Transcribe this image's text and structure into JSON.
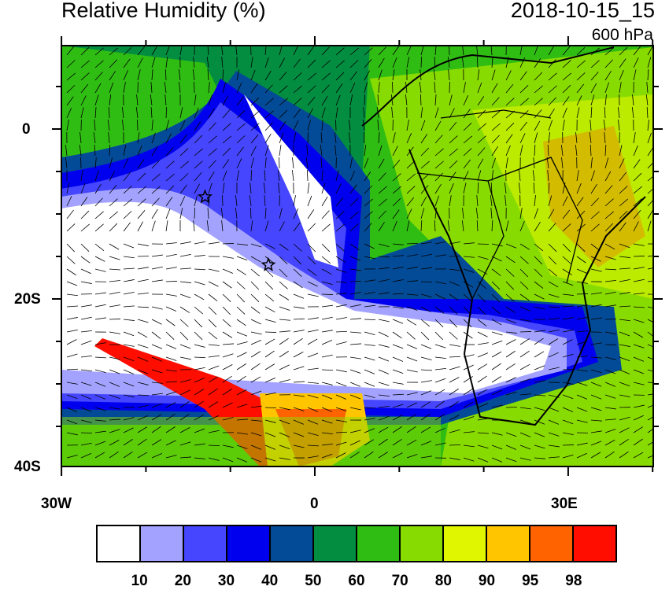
{
  "title": "Relative Humidity (%)",
  "valid_time": "2018-10-15_15",
  "level": "600 hPa",
  "axes": {
    "lon_ticks": [
      "30W",
      "0",
      "30E"
    ],
    "lat_ticks": [
      "0",
      "20S",
      "40S"
    ]
  },
  "colorbar": {
    "labels": [
      "10",
      "20",
      "30",
      "40",
      "50",
      "60",
      "70",
      "80",
      "90",
      "95",
      "98"
    ],
    "colors": [
      "#ffffff",
      "#a3a3ff",
      "#4646ff",
      "#0000ee",
      "#034b96",
      "#038d40",
      "#30bd13",
      "#88db00",
      "#e0f500",
      "#ffc600",
      "#ff6300",
      "#ff0e00"
    ]
  },
  "markers": [
    {
      "type": "star",
      "lon": -13,
      "lat": -8
    },
    {
      "type": "star",
      "lon": -5.5,
      "lat": -16
    }
  ]
}
